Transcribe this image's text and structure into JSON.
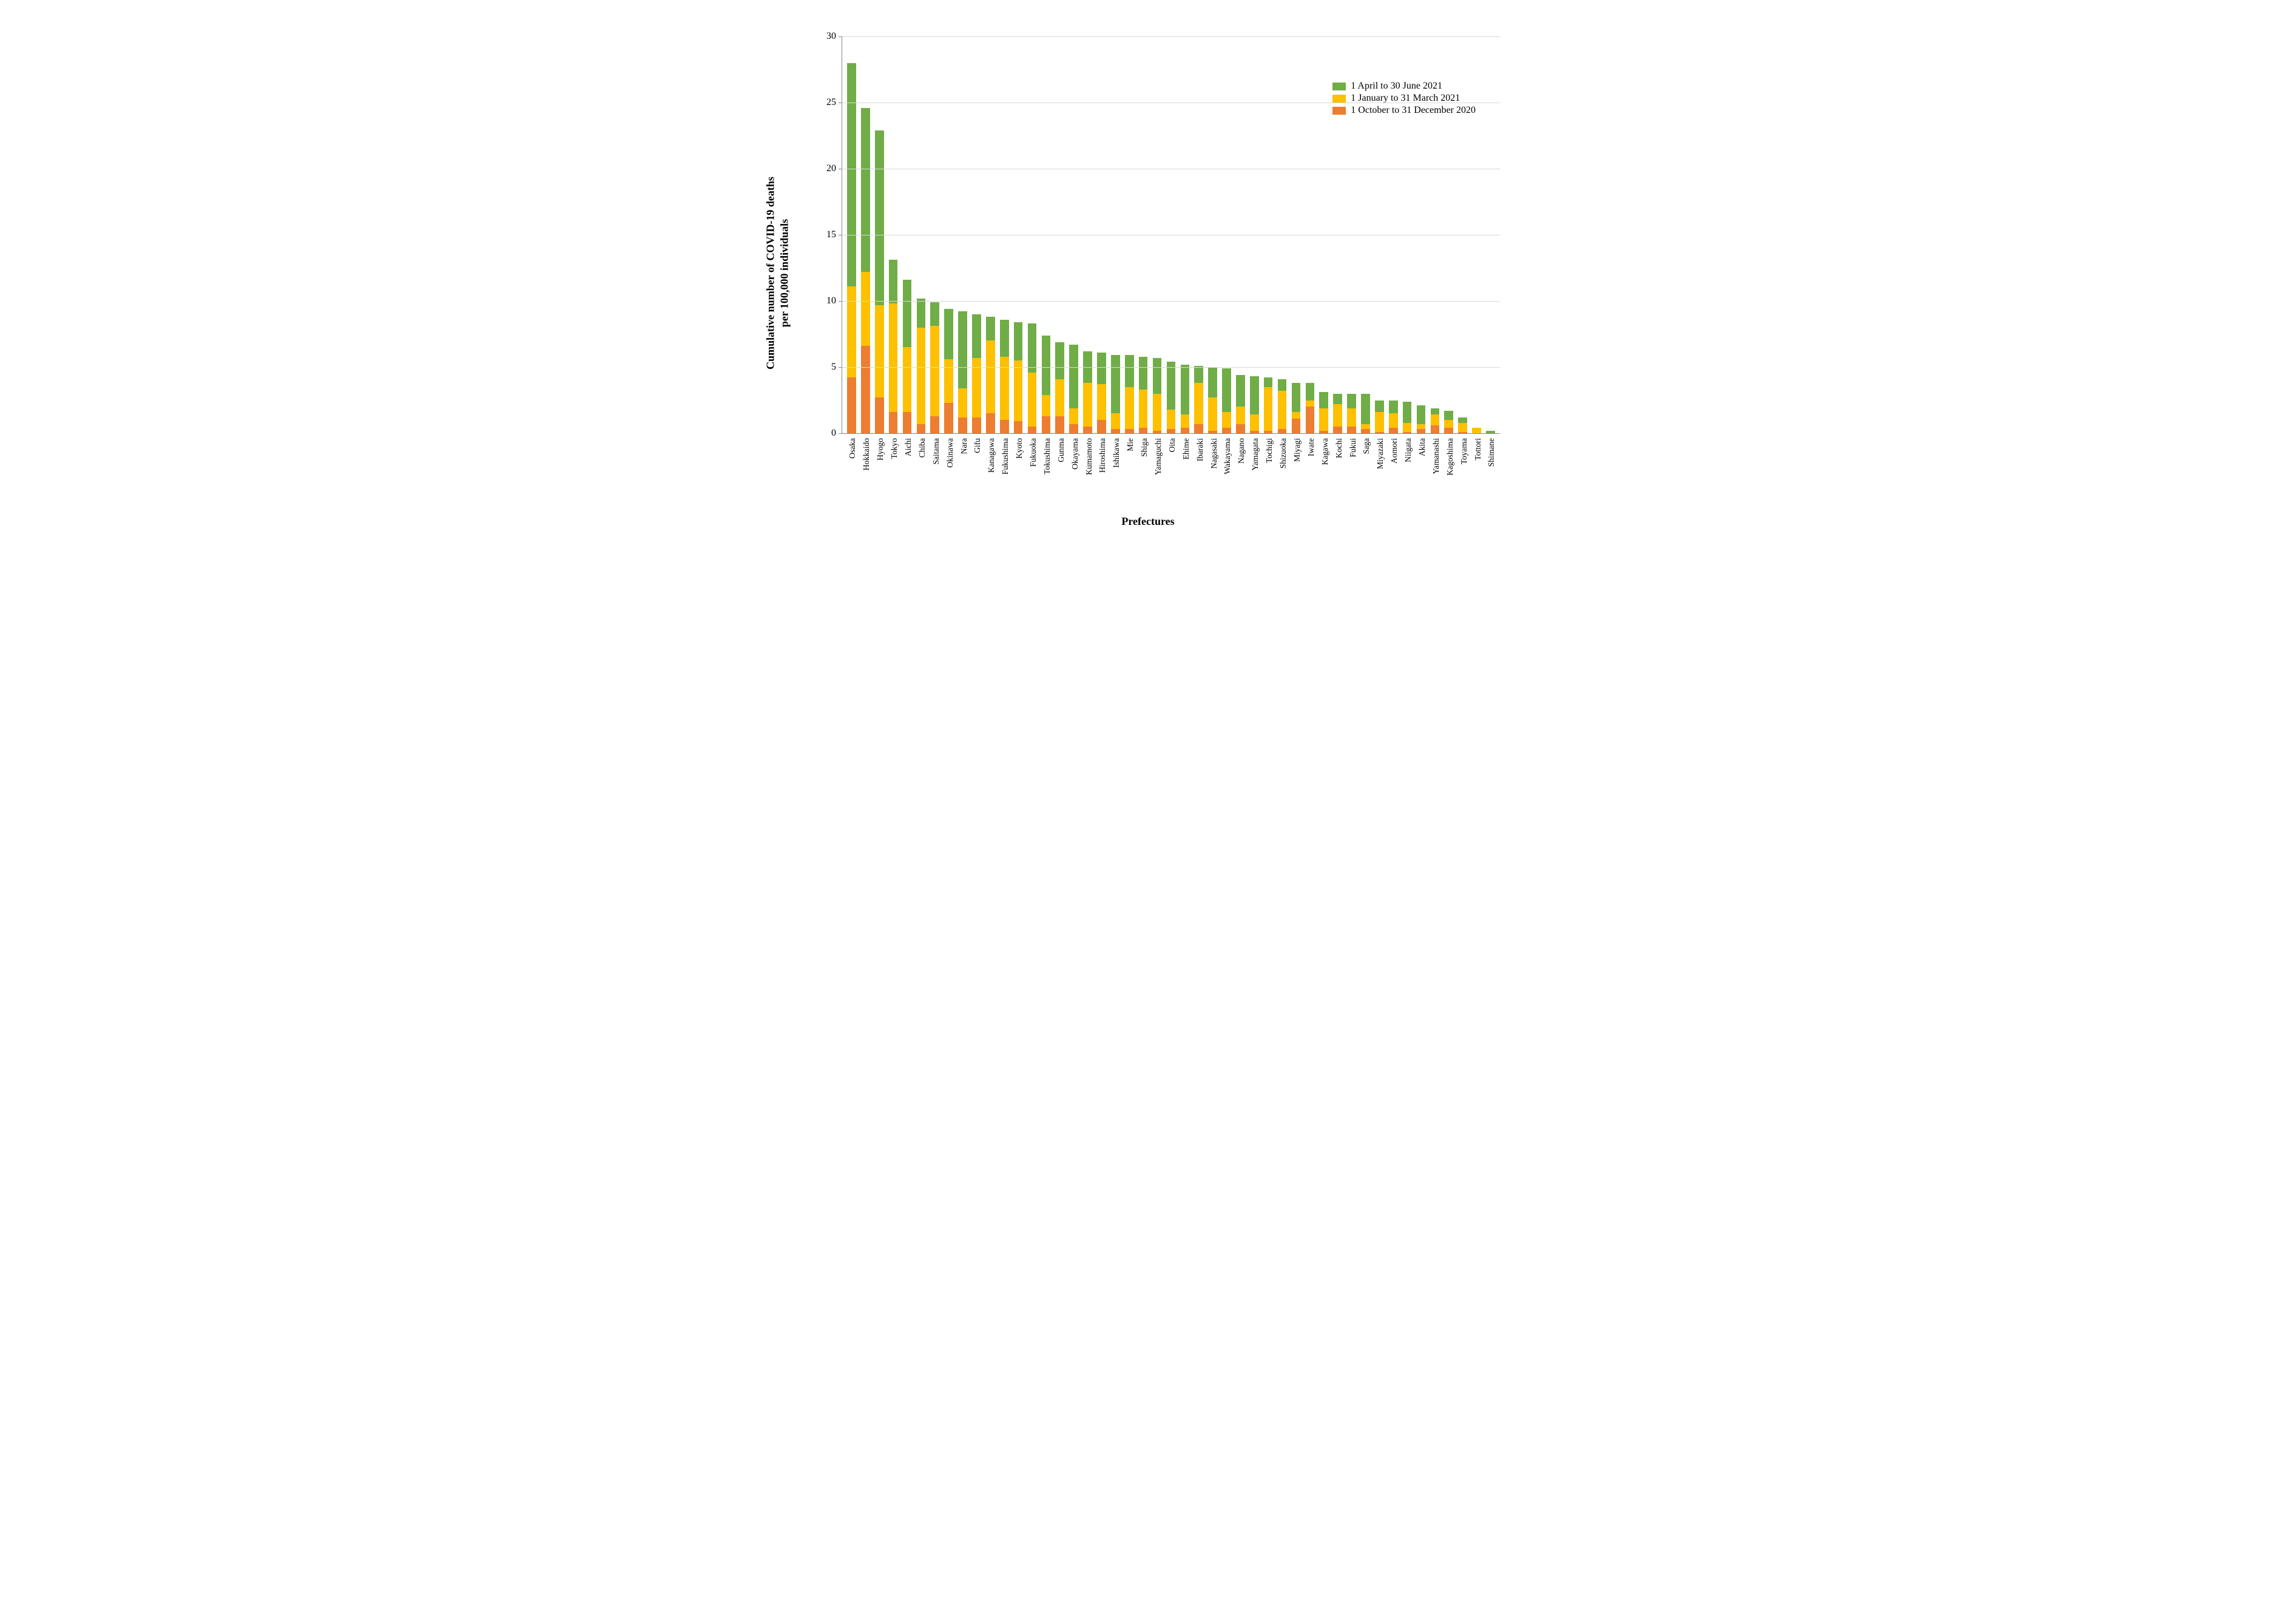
{
  "chart": {
    "type": "stacked-bar",
    "y_label": "Cumulative number of COVID-19 deaths\nper 100,000 individuals",
    "x_label": "Prefectures",
    "ylim": [
      0,
      30
    ],
    "ytick_step": 5,
    "y_ticks": [
      0,
      5,
      10,
      15,
      20,
      25,
      30
    ],
    "background_color": "#ffffff",
    "grid_color": "#d9d9d9",
    "axis_color": "#888888",
    "bar_width_ratio": 0.64,
    "label_fontsize_pt": 18,
    "tick_fontsize_pt": 14,
    "legend_fontsize_pt": 16,
    "series": [
      {
        "key": "oct_dec_2020",
        "label": "1 October to 31 December 2020",
        "color": "#ed7d31"
      },
      {
        "key": "jan_mar_2021",
        "label": "1 January to 31 March 2021",
        "color": "#ffc000"
      },
      {
        "key": "apr_jun_2021",
        "label": "1 April to 30 June 2021",
        "color": "#70ad47"
      }
    ],
    "legend_order": [
      "apr_jun_2021",
      "jan_mar_2021",
      "oct_dec_2020"
    ],
    "categories": [
      "Osaka",
      "Hokkaido",
      "Hyogo",
      "Tokyo",
      "Aichi",
      "Chiba",
      "Saitama",
      "Okinawa",
      "Nara",
      "Gifu",
      "Kanagawa",
      "Fukushima",
      "Kyoto",
      "Fukuoka",
      "Tokushima",
      "Gunma",
      "Okayama",
      "Kumamoto",
      "Hiroshima",
      "Ishikawa",
      "Mie",
      "Shiga",
      "Yamaguchi",
      "Oita",
      "Ehime",
      "Ibaraki",
      "Nagasaki",
      "Wakayama",
      "Nagano",
      "Yamagata",
      "Tochigi",
      "Shizuoka",
      "Miyagi",
      "Iwate",
      "Kagawa",
      "Kochi",
      "Fukui",
      "Saga",
      "Miyazaki",
      "Aomori",
      "Niigata",
      "Akita",
      "Yamanashi",
      "Kagoshima",
      "Toyama",
      "Tottori",
      "Shimane"
    ],
    "data": {
      "Osaka": {
        "oct_dec_2020": 4.2,
        "jan_mar_2021": 6.9,
        "apr_jun_2021": 16.9
      },
      "Hokkaido": {
        "oct_dec_2020": 6.6,
        "jan_mar_2021": 5.6,
        "apr_jun_2021": 12.4
      },
      "Hyogo": {
        "oct_dec_2020": 2.7,
        "jan_mar_2021": 7.0,
        "apr_jun_2021": 13.2
      },
      "Tokyo": {
        "oct_dec_2020": 1.6,
        "jan_mar_2021": 8.2,
        "apr_jun_2021": 3.3
      },
      "Aichi": {
        "oct_dec_2020": 1.6,
        "jan_mar_2021": 4.9,
        "apr_jun_2021": 5.1
      },
      "Chiba": {
        "oct_dec_2020": 0.7,
        "jan_mar_2021": 7.3,
        "apr_jun_2021": 2.2
      },
      "Saitama": {
        "oct_dec_2020": 1.3,
        "jan_mar_2021": 6.8,
        "apr_jun_2021": 1.8
      },
      "Okinawa": {
        "oct_dec_2020": 2.3,
        "jan_mar_2021": 3.3,
        "apr_jun_2021": 3.8
      },
      "Nara": {
        "oct_dec_2020": 1.2,
        "jan_mar_2021": 2.2,
        "apr_jun_2021": 5.8
      },
      "Gifu": {
        "oct_dec_2020": 1.2,
        "jan_mar_2021": 4.5,
        "apr_jun_2021": 3.3
      },
      "Kanagawa": {
        "oct_dec_2020": 1.5,
        "jan_mar_2021": 5.5,
        "apr_jun_2021": 1.8
      },
      "Fukushima": {
        "oct_dec_2020": 1.0,
        "jan_mar_2021": 4.8,
        "apr_jun_2021": 2.8
      },
      "Kyoto": {
        "oct_dec_2020": 0.9,
        "jan_mar_2021": 4.6,
        "apr_jun_2021": 2.9
      },
      "Fukuoka": {
        "oct_dec_2020": 0.5,
        "jan_mar_2021": 4.1,
        "apr_jun_2021": 3.7
      },
      "Tokushima": {
        "oct_dec_2020": 1.3,
        "jan_mar_2021": 1.6,
        "apr_jun_2021": 4.5
      },
      "Gunma": {
        "oct_dec_2020": 1.3,
        "jan_mar_2021": 2.8,
        "apr_jun_2021": 2.8
      },
      "Okayama": {
        "oct_dec_2020": 0.7,
        "jan_mar_2021": 1.2,
        "apr_jun_2021": 4.8
      },
      "Kumamoto": {
        "oct_dec_2020": 0.5,
        "jan_mar_2021": 3.3,
        "apr_jun_2021": 2.4
      },
      "Hiroshima": {
        "oct_dec_2020": 1.0,
        "jan_mar_2021": 2.7,
        "apr_jun_2021": 2.4
      },
      "Ishikawa": {
        "oct_dec_2020": 0.3,
        "jan_mar_2021": 1.2,
        "apr_jun_2021": 4.4
      },
      "Mie": {
        "oct_dec_2020": 0.3,
        "jan_mar_2021": 3.2,
        "apr_jun_2021": 2.4
      },
      "Shiga": {
        "oct_dec_2020": 0.4,
        "jan_mar_2021": 2.9,
        "apr_jun_2021": 2.5
      },
      "Yamaguchi": {
        "oct_dec_2020": 0.2,
        "jan_mar_2021": 2.8,
        "apr_jun_2021": 2.7
      },
      "Oita": {
        "oct_dec_2020": 0.3,
        "jan_mar_2021": 1.5,
        "apr_jun_2021": 3.6
      },
      "Ehime": {
        "oct_dec_2020": 0.4,
        "jan_mar_2021": 1.0,
        "apr_jun_2021": 3.8
      },
      "Ibaraki": {
        "oct_dec_2020": 0.7,
        "jan_mar_2021": 3.1,
        "apr_jun_2021": 1.3
      },
      "Nagasaki": {
        "oct_dec_2020": 0.2,
        "jan_mar_2021": 2.5,
        "apr_jun_2021": 2.3
      },
      "Wakayama": {
        "oct_dec_2020": 0.4,
        "jan_mar_2021": 1.2,
        "apr_jun_2021": 3.3
      },
      "Nagano": {
        "oct_dec_2020": 0.7,
        "jan_mar_2021": 1.3,
        "apr_jun_2021": 2.4
      },
      "Yamagata": {
        "oct_dec_2020": 0.2,
        "jan_mar_2021": 1.2,
        "apr_jun_2021": 2.9
      },
      "Tochigi": {
        "oct_dec_2020": 0.2,
        "jan_mar_2021": 3.3,
        "apr_jun_2021": 0.7
      },
      "Shizuoka": {
        "oct_dec_2020": 0.3,
        "jan_mar_2021": 2.9,
        "apr_jun_2021": 0.9
      },
      "Miyagi": {
        "oct_dec_2020": 1.1,
        "jan_mar_2021": 0.5,
        "apr_jun_2021": 2.2
      },
      "Iwate": {
        "oct_dec_2020": 2.0,
        "jan_mar_2021": 0.5,
        "apr_jun_2021": 1.3
      },
      "Kagawa": {
        "oct_dec_2020": 0.2,
        "jan_mar_2021": 1.7,
        "apr_jun_2021": 1.2
      },
      "Kochi": {
        "oct_dec_2020": 0.5,
        "jan_mar_2021": 1.7,
        "apr_jun_2021": 0.8
      },
      "Fukui": {
        "oct_dec_2020": 0.5,
        "jan_mar_2021": 1.4,
        "apr_jun_2021": 1.1
      },
      "Saga": {
        "oct_dec_2020": 0.3,
        "jan_mar_2021": 0.4,
        "apr_jun_2021": 2.3
      },
      "Miyazaki": {
        "oct_dec_2020": 0.1,
        "jan_mar_2021": 1.5,
        "apr_jun_2021": 0.9
      },
      "Aomori": {
        "oct_dec_2020": 0.4,
        "jan_mar_2021": 1.1,
        "apr_jun_2021": 1.0
      },
      "Niigata": {
        "oct_dec_2020": 0.1,
        "jan_mar_2021": 0.7,
        "apr_jun_2021": 1.6
      },
      "Akita": {
        "oct_dec_2020": 0.3,
        "jan_mar_2021": 0.4,
        "apr_jun_2021": 1.4
      },
      "Yamanashi": {
        "oct_dec_2020": 0.6,
        "jan_mar_2021": 0.8,
        "apr_jun_2021": 0.5
      },
      "Kagoshima": {
        "oct_dec_2020": 0.4,
        "jan_mar_2021": 0.6,
        "apr_jun_2021": 0.7
      },
      "Toyama": {
        "oct_dec_2020": 0.1,
        "jan_mar_2021": 0.7,
        "apr_jun_2021": 0.4
      },
      "Tottori": {
        "oct_dec_2020": 0.0,
        "jan_mar_2021": 0.4,
        "apr_jun_2021": 0.0
      },
      "Shimane": {
        "oct_dec_2020": 0.0,
        "jan_mar_2021": 0.0,
        "apr_jun_2021": 0.2
      }
    }
  }
}
